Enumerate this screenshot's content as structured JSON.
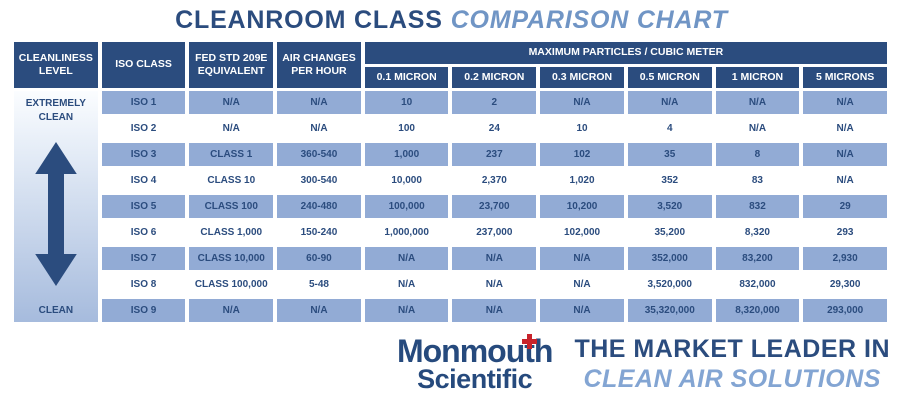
{
  "title": {
    "main": "CLEANROOM CLASS",
    "accent": "COMPARISON CHART"
  },
  "chart_data": {
    "type": "table",
    "title": "CLEANROOM CLASS COMPARISON CHART",
    "group_header": "MAXIMUM PARTICLES / CUBIC METER",
    "columns": [
      "CLEANLINESS LEVEL",
      "ISO CLASS",
      "FED STD 209E EQUIVALENT",
      "AIR CHANGES PER HOUR",
      "0.1 MICRON",
      "0.2 MICRON",
      "0.3 MICRON",
      "0.5 MICRON",
      "1 MICRON",
      "5 MICRONS"
    ],
    "cleanliness_scale": {
      "top": "EXTREMELY CLEAN",
      "bottom": "CLEAN"
    },
    "rows": [
      [
        "ISO 1",
        "N/A",
        "N/A",
        "10",
        "2",
        "N/A",
        "N/A",
        "N/A",
        "N/A"
      ],
      [
        "ISO 2",
        "N/A",
        "N/A",
        "100",
        "24",
        "10",
        "4",
        "N/A",
        "N/A"
      ],
      [
        "ISO 3",
        "CLASS 1",
        "360-540",
        "1,000",
        "237",
        "102",
        "35",
        "8",
        "N/A"
      ],
      [
        "ISO 4",
        "CLASS 10",
        "300-540",
        "10,000",
        "2,370",
        "1,020",
        "352",
        "83",
        "N/A"
      ],
      [
        "ISO 5",
        "CLASS 100",
        "240-480",
        "100,000",
        "23,700",
        "10,200",
        "3,520",
        "832",
        "29"
      ],
      [
        "ISO 6",
        "CLASS 1,000",
        "150-240",
        "1,000,000",
        "237,000",
        "102,000",
        "35,200",
        "8,320",
        "293"
      ],
      [
        "ISO 7",
        "CLASS 10,000",
        "60-90",
        "N/A",
        "N/A",
        "N/A",
        "352,000",
        "83,200",
        "2,930"
      ],
      [
        "ISO 8",
        "CLASS 100,000",
        "5-48",
        "N/A",
        "N/A",
        "N/A",
        "3,520,000",
        "832,000",
        "29,300"
      ],
      [
        "ISO 9",
        "N/A",
        "N/A",
        "N/A",
        "N/A",
        "N/A",
        "35,320,000",
        "8,320,000",
        "293,000"
      ]
    ]
  },
  "footer": {
    "brand": {
      "name_pre": "Monmou",
      "name_t": "t",
      "name_post": "h",
      "name_line2": "Scientific"
    },
    "tagline_line1": "THE MARKET LEADER IN",
    "tagline_line2": "CLEAN AIR SOLUTIONS"
  },
  "colors": {
    "header_navy": "#2B4C7E",
    "shaded_row_blue": "#92ABD5",
    "title_accent_blue": "#7095C5",
    "tagline_light_blue": "#83A5D3",
    "brand_navy": "#264A7D",
    "brand_plus_red": "#C8232B"
  }
}
